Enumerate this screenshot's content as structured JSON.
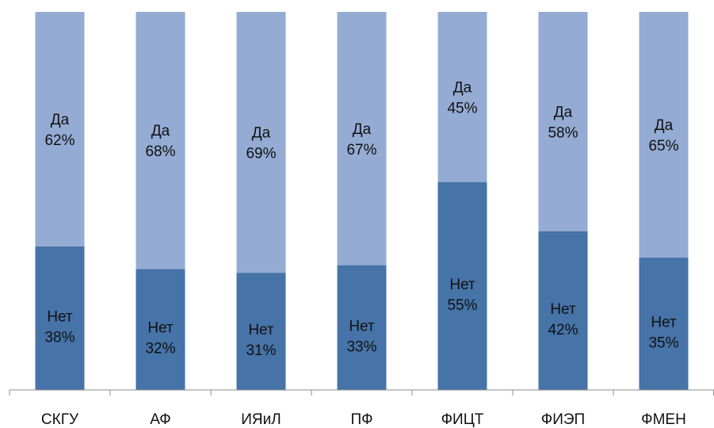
{
  "chart_data": {
    "type": "bar",
    "stacked": true,
    "percent_stacked": true,
    "categories": [
      "СКГУ",
      "АФ",
      "ИЯиЛ",
      "ПФ",
      "ФИЦТ",
      "ФИЭП",
      "ФМЕН"
    ],
    "series": [
      {
        "name": "Нет",
        "values": [
          38,
          32,
          31,
          33,
          55,
          42,
          35
        ],
        "color": "#4673a8"
      },
      {
        "name": "Да",
        "values": [
          62,
          68,
          69,
          67,
          45,
          58,
          65
        ],
        "color": "#94abd3"
      }
    ],
    "value_suffix": "%",
    "ylim": [
      0,
      100
    ],
    "grid": false,
    "legend": "none",
    "title": "",
    "xlabel": "",
    "ylabel": ""
  }
}
